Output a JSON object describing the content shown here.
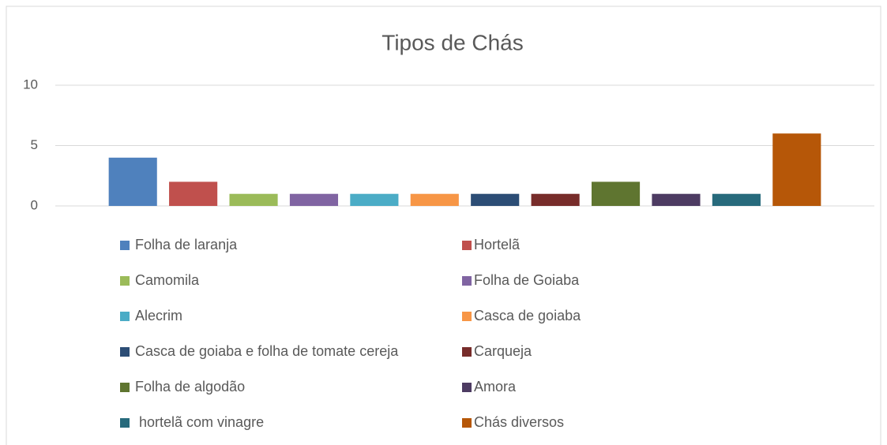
{
  "chart_data": {
    "type": "bar",
    "title": "Tipos de Chás",
    "series": [
      {
        "name": "Folha de laranja",
        "color": "#4f81bd",
        "values": [
          4
        ]
      },
      {
        "name": "Hortelã",
        "color": "#c0504d",
        "values": [
          2
        ]
      },
      {
        "name": "Camomila",
        "color": "#9bbb59",
        "values": [
          1
        ]
      },
      {
        "name": "Folha de Goiaba",
        "color": "#8064a2",
        "values": [
          1
        ]
      },
      {
        "name": "Alecrim",
        "color": "#4bacc6",
        "values": [
          1
        ]
      },
      {
        "name": "Casca de goiaba",
        "color": "#f79646",
        "values": [
          1
        ]
      },
      {
        "name": "Casca de goiaba e folha de tomate cereja",
        "color": "#2c4d75",
        "values": [
          1
        ]
      },
      {
        "name": "Carqueja",
        "color": "#772c2a",
        "values": [
          1
        ]
      },
      {
        "name": "Folha de algodão",
        "color": "#5f7530",
        "values": [
          2
        ]
      },
      {
        "name": "Amora",
        "color": "#4d3b62",
        "values": [
          1
        ]
      },
      {
        "name": " hortelã com vinagre",
        "color": "#276a7c",
        "values": [
          1
        ]
      },
      {
        "name": "Chás diversos",
        "color": "#b65708",
        "values": [
          6
        ]
      }
    ],
    "ylim": [
      0,
      10
    ],
    "yticks": [
      0,
      5,
      10
    ],
    "grid": true,
    "legend": "bottom"
  }
}
